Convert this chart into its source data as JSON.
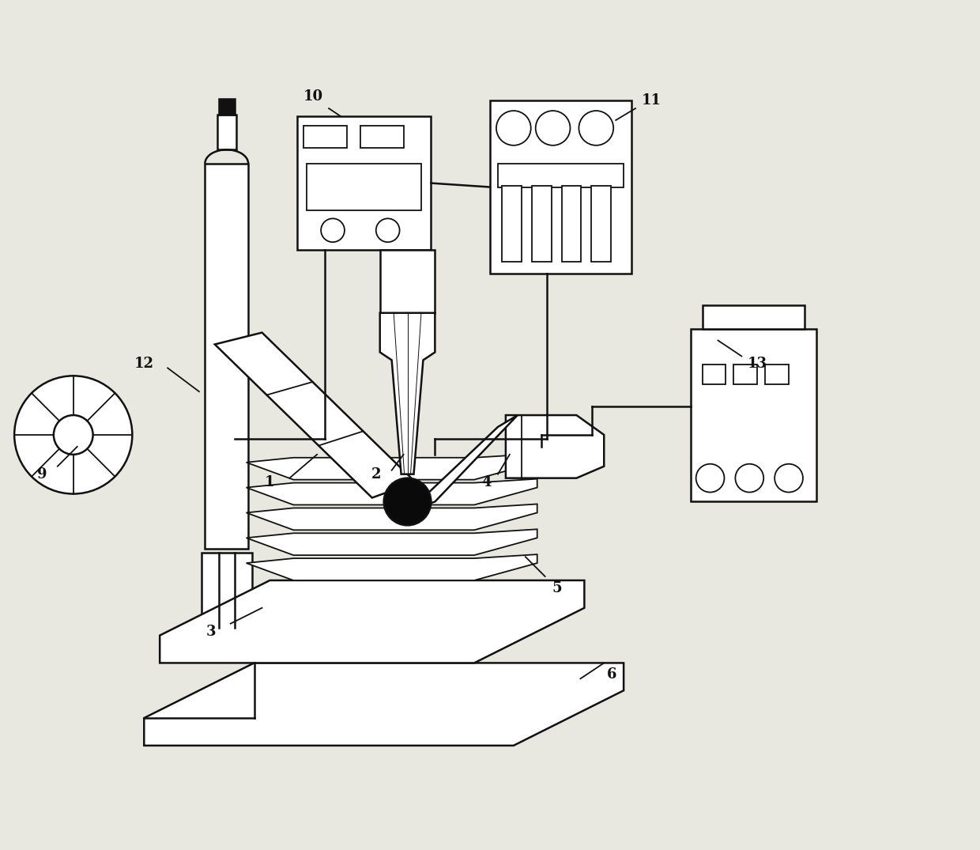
{
  "bg_color": "#e8e8e0",
  "line_color": "#111111",
  "lw": 1.8,
  "lw2": 1.3,
  "fig_width": 12.4,
  "fig_height": 10.75
}
